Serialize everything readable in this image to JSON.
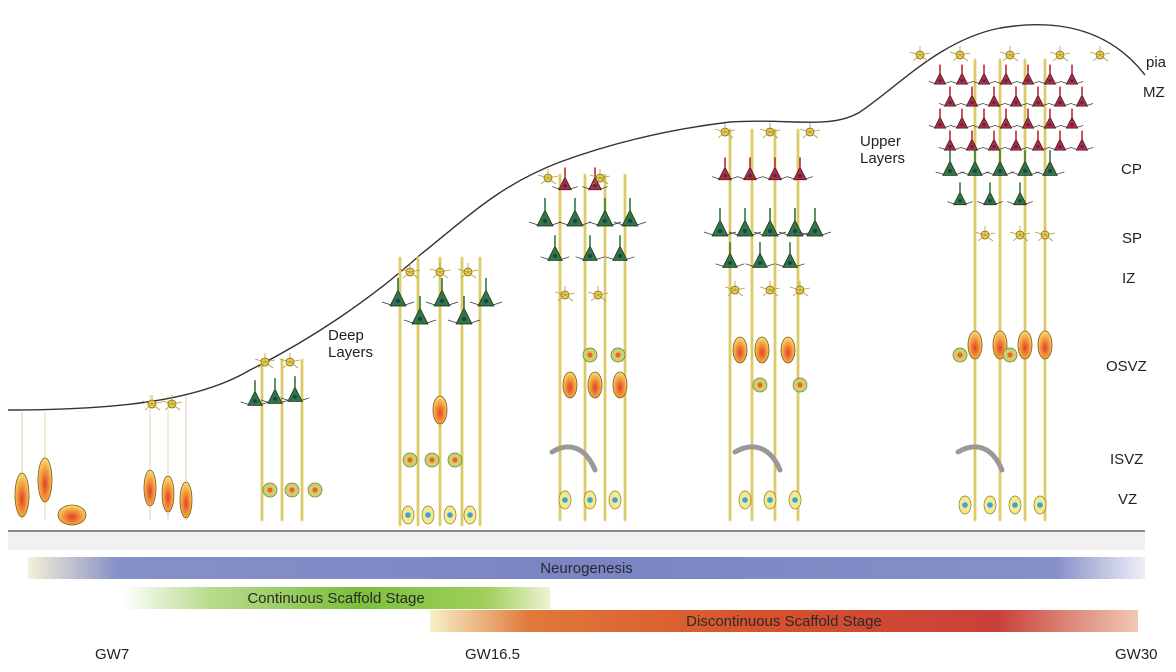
{
  "layer_labels": {
    "pia": "pia",
    "mz": "MZ",
    "cp": "CP",
    "sp": "SP",
    "iz": "IZ",
    "osvz": "OSVZ",
    "isvz": "ISVZ",
    "vz": "VZ"
  },
  "annotations": {
    "deep_layers": [
      "Deep",
      "Layers"
    ],
    "upper_layers": [
      "Upper",
      "Layers"
    ]
  },
  "timeline": {
    "neurogenesis": "Neurogenesis",
    "continuous": "Continuous Scaffold Stage",
    "discontinuous": "Discontinuous Scaffold Stage"
  },
  "ticks": {
    "start": "GW7",
    "mid": "GW16.5",
    "end": "GW30"
  },
  "colors": {
    "neurogenesis": "#7b84c4",
    "continuous": "#7cbf3c",
    "discontinuous": "#d8532c",
    "radial_glia": "#f2e58a",
    "deep_neuron": "#2f7a3a",
    "upper_neuron": "#c4243a",
    "interneuron": "#f0d35a",
    "ipc": "#e3b95b"
  }
}
